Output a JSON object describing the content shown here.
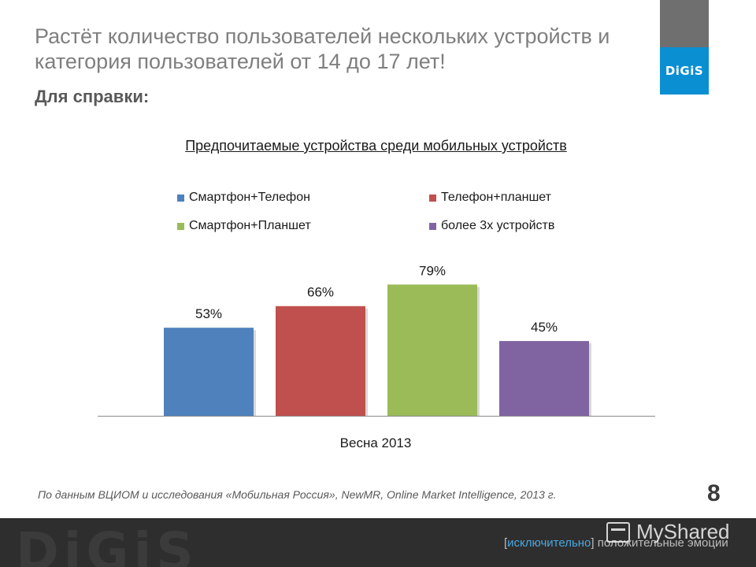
{
  "header": {
    "title": "Растёт количество пользователей нескольких устройств и категория пользователей от 14 до 17 лет!",
    "subtitle": "Для справки:",
    "logo_text": "DiGiS"
  },
  "chart_data": {
    "type": "bar",
    "title": "Предпочитаемые устройства среди мобильных устройств",
    "categories": [
      "Весна 2013"
    ],
    "series": [
      {
        "name": "Смартфон+Телефон",
        "values": [
          53
        ],
        "color": "#4f81bd"
      },
      {
        "name": "Телефон+планшет",
        "values": [
          66
        ],
        "color": "#c0504d"
      },
      {
        "name": "Смартфон+Планшет",
        "values": [
          79
        ],
        "color": "#9bbb59"
      },
      {
        "name": "более 3х устройств",
        "values": [
          45
        ],
        "color": "#8064a2"
      }
    ],
    "data_labels": [
      "53%",
      "66%",
      "79%",
      "45%"
    ],
    "legend_order": [
      "Смартфон+Телефон",
      "Телефон+планшет",
      "Смартфон+Планшет",
      "более 3х устройств"
    ],
    "xlabel": "",
    "ylabel": "",
    "ylim": [
      0,
      100
    ],
    "grid": false,
    "legend_position": "top"
  },
  "footer": {
    "source": "По данным ВЦИОМ и исследования «Мобильная Россия», NewMR, Online Market Intelligence, 2013 г.",
    "page_number": "8",
    "brand_text": "DiGiS",
    "slogan_bracket_open": "[",
    "slogan_highlight": "исключительно",
    "slogan_bracket_close": "]",
    "slogan_rest": " положительные эмоции",
    "watermark": "MyShared"
  }
}
